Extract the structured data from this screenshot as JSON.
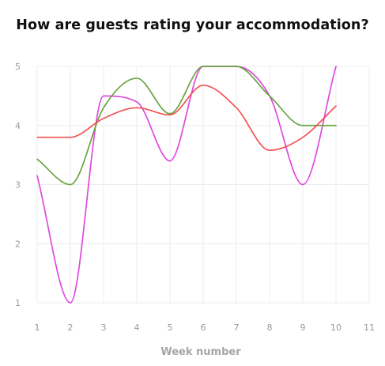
{
  "chart_data": {
    "type": "line",
    "title": "How are guests rating your accommodation?",
    "xlabel": "Week number",
    "ylabel": "",
    "xlim": [
      1,
      11
    ],
    "ylim": [
      1,
      5
    ],
    "x_ticks": [
      1,
      2,
      3,
      4,
      5,
      6,
      7,
      8,
      9,
      10,
      11
    ],
    "y_ticks": [
      1,
      2,
      3,
      4,
      5
    ],
    "grid": true,
    "legend": "none",
    "x": [
      1,
      2,
      3,
      4,
      5,
      6,
      7,
      8,
      9,
      10
    ],
    "series": [
      {
        "color": "#e048e0",
        "values": [
          3.15,
          1.0,
          4.5,
          4.4,
          3.4,
          5.0,
          5.0,
          4.5,
          3.0,
          5.0
        ]
      },
      {
        "color": "#6aa342",
        "values": [
          3.43,
          3.0,
          4.3,
          4.8,
          4.2,
          5.0,
          5.0,
          4.5,
          4.0,
          4.0
        ]
      },
      {
        "color": "#f25252",
        "values": [
          3.8,
          3.8,
          4.12,
          4.3,
          4.18,
          4.68,
          4.3,
          3.58,
          3.8,
          4.33
        ]
      }
    ]
  }
}
